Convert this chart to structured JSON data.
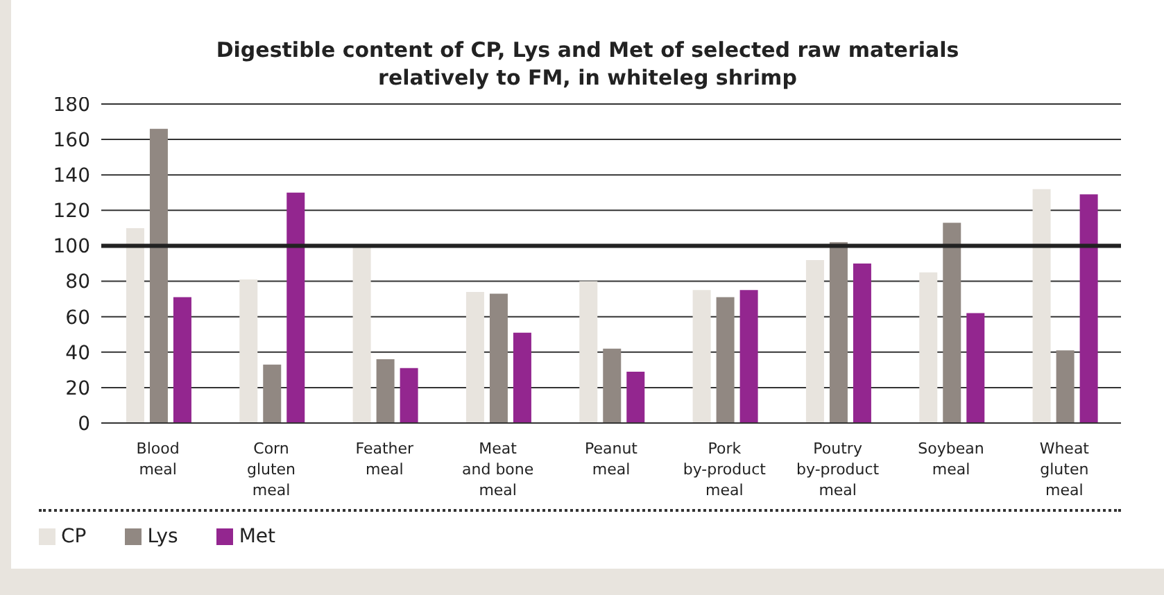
{
  "chart_data": {
    "type": "bar",
    "title": "Digestible content of CP, Lys and Met of selected raw materials\nrelatively to FM, in whiteleg shrimp",
    "categories": [
      "Blood\nmeal",
      "Corn\ngluten\nmeal",
      "Feather\nmeal",
      "Meat\nand bone\nmeal",
      "Peanut\nmeal",
      "Pork\nby-product\nmeal",
      "Poutry\nby-product\nmeal",
      "Soybean\nmeal",
      "Wheat\ngluten\nmeal"
    ],
    "series": [
      {
        "name": "CP",
        "color": "#e8e4de",
        "values": [
          110,
          81,
          99,
          74,
          80,
          75,
          92,
          85,
          132
        ]
      },
      {
        "name": "Lys",
        "color": "#918882",
        "values": [
          166,
          33,
          36,
          73,
          42,
          71,
          102,
          113,
          41
        ]
      },
      {
        "name": "Met",
        "color": "#93268f",
        "values": [
          71,
          130,
          31,
          51,
          29,
          75,
          90,
          62,
          129
        ]
      }
    ],
    "ylim": [
      0,
      180
    ],
    "yticks": [
      0,
      20,
      40,
      60,
      80,
      100,
      120,
      140,
      160,
      180
    ],
    "grid": "y",
    "legend": "bottom left",
    "ref_lines": [
      {
        "axis": "y",
        "value": 100,
        "color": "#222222"
      }
    ]
  }
}
